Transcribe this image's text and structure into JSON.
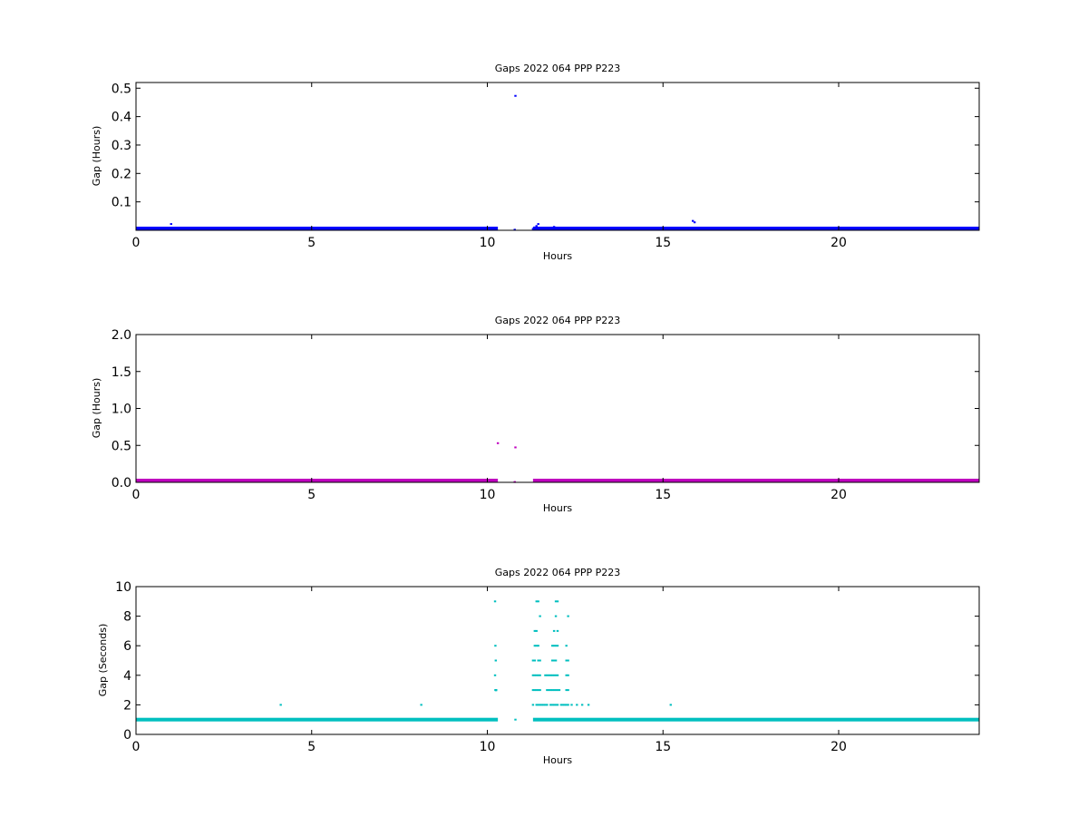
{
  "figure": {
    "background": "#ffffff"
  },
  "chart_data": [
    {
      "type": "scatter",
      "title": "Gaps 2022 064 PPP  P223",
      "xlabel": "Hours",
      "ylabel": "Gap (Hours)",
      "xlim": [
        0,
        24
      ],
      "ylim": [
        0,
        0.52
      ],
      "xticks": [
        0,
        5,
        10,
        15,
        20
      ],
      "xtick_labels": [
        "0",
        "5",
        "10",
        "15",
        "20"
      ],
      "yticks": [
        0.1,
        0.2,
        0.3,
        0.4,
        0.5
      ],
      "ytick_labels": [
        "0.1",
        "0.2",
        "0.3",
        "0.4",
        "0.5"
      ],
      "grid": false,
      "color": "#0000ff",
      "baseline": {
        "name": "",
        "y": 0.0007,
        "x_ranges": [
          [
            0,
            10.3
          ],
          [
            11.3,
            24
          ]
        ]
      },
      "series": [
        {
          "name": "",
          "x": [
            1.0,
            10.8,
            10.78,
            11.3,
            11.35,
            11.4,
            11.45,
            11.5,
            11.9,
            11.95,
            12.0,
            12.3,
            15.85,
            15.9
          ],
          "y": [
            0.022,
            0.473,
            0.002,
            0.005,
            0.01,
            0.015,
            0.022,
            0.008,
            0.012,
            0.008,
            0.005,
            0.008,
            0.033,
            0.028
          ]
        }
      ]
    },
    {
      "type": "scatter",
      "title": "Gaps 2022 064 PPP  P223",
      "xlabel": "Hours",
      "ylabel": "Gap (Hours)",
      "xlim": [
        0,
        24
      ],
      "ylim": [
        0,
        2.0
      ],
      "xticks": [
        0,
        5,
        10,
        15,
        20
      ],
      "xtick_labels": [
        "0",
        "5",
        "10",
        "15",
        "20"
      ],
      "yticks": [
        0.0,
        0.5,
        1.0,
        1.5,
        2.0
      ],
      "ytick_labels": [
        "0.0",
        "0.5",
        "1.0",
        "1.5",
        "2.0"
      ],
      "grid": false,
      "color": "#bf00bf",
      "baseline": {
        "name": "",
        "y": 0.003,
        "x_ranges": [
          [
            0,
            10.3
          ],
          [
            11.3,
            24
          ]
        ]
      },
      "series": [
        {
          "name": "",
          "x": [
            1.0,
            10.3,
            10.8,
            10.78,
            11.4,
            11.9,
            15.9
          ],
          "y": [
            0.02,
            0.53,
            0.473,
            0.005,
            0.01,
            0.012,
            0.033
          ]
        }
      ]
    },
    {
      "type": "scatter",
      "title": "Gaps 2022 064 PPP  P223",
      "xlabel": "Hours",
      "ylabel": "Gap (Seconds)",
      "xlim": [
        0,
        24
      ],
      "ylim": [
        0,
        10
      ],
      "xticks": [
        0,
        5,
        10,
        15,
        20
      ],
      "xtick_labels": [
        "0",
        "5",
        "10",
        "15",
        "20"
      ],
      "yticks": [
        0,
        2,
        4,
        6,
        8,
        10
      ],
      "ytick_labels": [
        "0",
        "2",
        "4",
        "6",
        "8",
        "10"
      ],
      "grid": false,
      "color": "#00bfbf",
      "baseline": {
        "name": "",
        "y": 1,
        "x_ranges": [
          [
            0,
            10.3
          ],
          [
            11.3,
            24
          ]
        ]
      },
      "series": [
        {
          "name": "",
          "x": [
            4.12,
            8.12,
            15.22,
            10.8,
            10.22,
            10.23,
            10.24,
            10.22,
            10.23,
            10.24,
            10.25,
            10.25,
            10.25,
            10.25,
            11.3,
            11.4,
            11.45,
            11.5,
            11.55,
            11.6,
            11.65,
            11.7,
            11.8,
            11.85,
            11.9,
            11.95,
            12.0,
            12.1,
            12.15,
            12.2,
            12.25,
            12.3,
            12.4,
            12.55,
            12.7,
            12.88,
            11.3,
            11.35,
            11.4,
            11.45,
            11.5,
            11.7,
            11.75,
            11.8,
            11.85,
            11.9,
            11.95,
            12.0,
            12.05,
            12.25,
            12.3,
            11.3,
            11.35,
            11.4,
            11.45,
            11.5,
            11.65,
            11.7,
            11.75,
            11.8,
            11.85,
            11.9,
            11.95,
            12.0,
            12.25,
            12.3,
            11.3,
            11.35,
            11.45,
            11.5,
            11.85,
            11.9,
            11.95,
            12.25,
            12.3,
            11.35,
            11.4,
            11.45,
            11.85,
            11.9,
            11.95,
            12.0,
            12.25,
            11.35,
            11.4,
            11.9,
            12.0,
            11.5,
            11.95,
            12.3,
            11.4,
            11.45,
            11.95,
            12.0
          ],
          "y": [
            2,
            2,
            2,
            1,
            9,
            6,
            5,
            4,
            3,
            3,
            3,
            3,
            3,
            3,
            2,
            2,
            2,
            2,
            2,
            2,
            2,
            2,
            2,
            2,
            2,
            2,
            2,
            2,
            2,
            2,
            2,
            2,
            2,
            2,
            2,
            2,
            3,
            3,
            3,
            3,
            3,
            3,
            3,
            3,
            3,
            3,
            3,
            3,
            3,
            3,
            3,
            4,
            4,
            4,
            4,
            4,
            4,
            4,
            4,
            4,
            4,
            4,
            4,
            4,
            4,
            4,
            5,
            5,
            5,
            5,
            5,
            5,
            5,
            5,
            5,
            6,
            6,
            6,
            6,
            6,
            6,
            6,
            6,
            7,
            7,
            7,
            7,
            8,
            8,
            8,
            9,
            9,
            9,
            9
          ]
        }
      ]
    }
  ]
}
